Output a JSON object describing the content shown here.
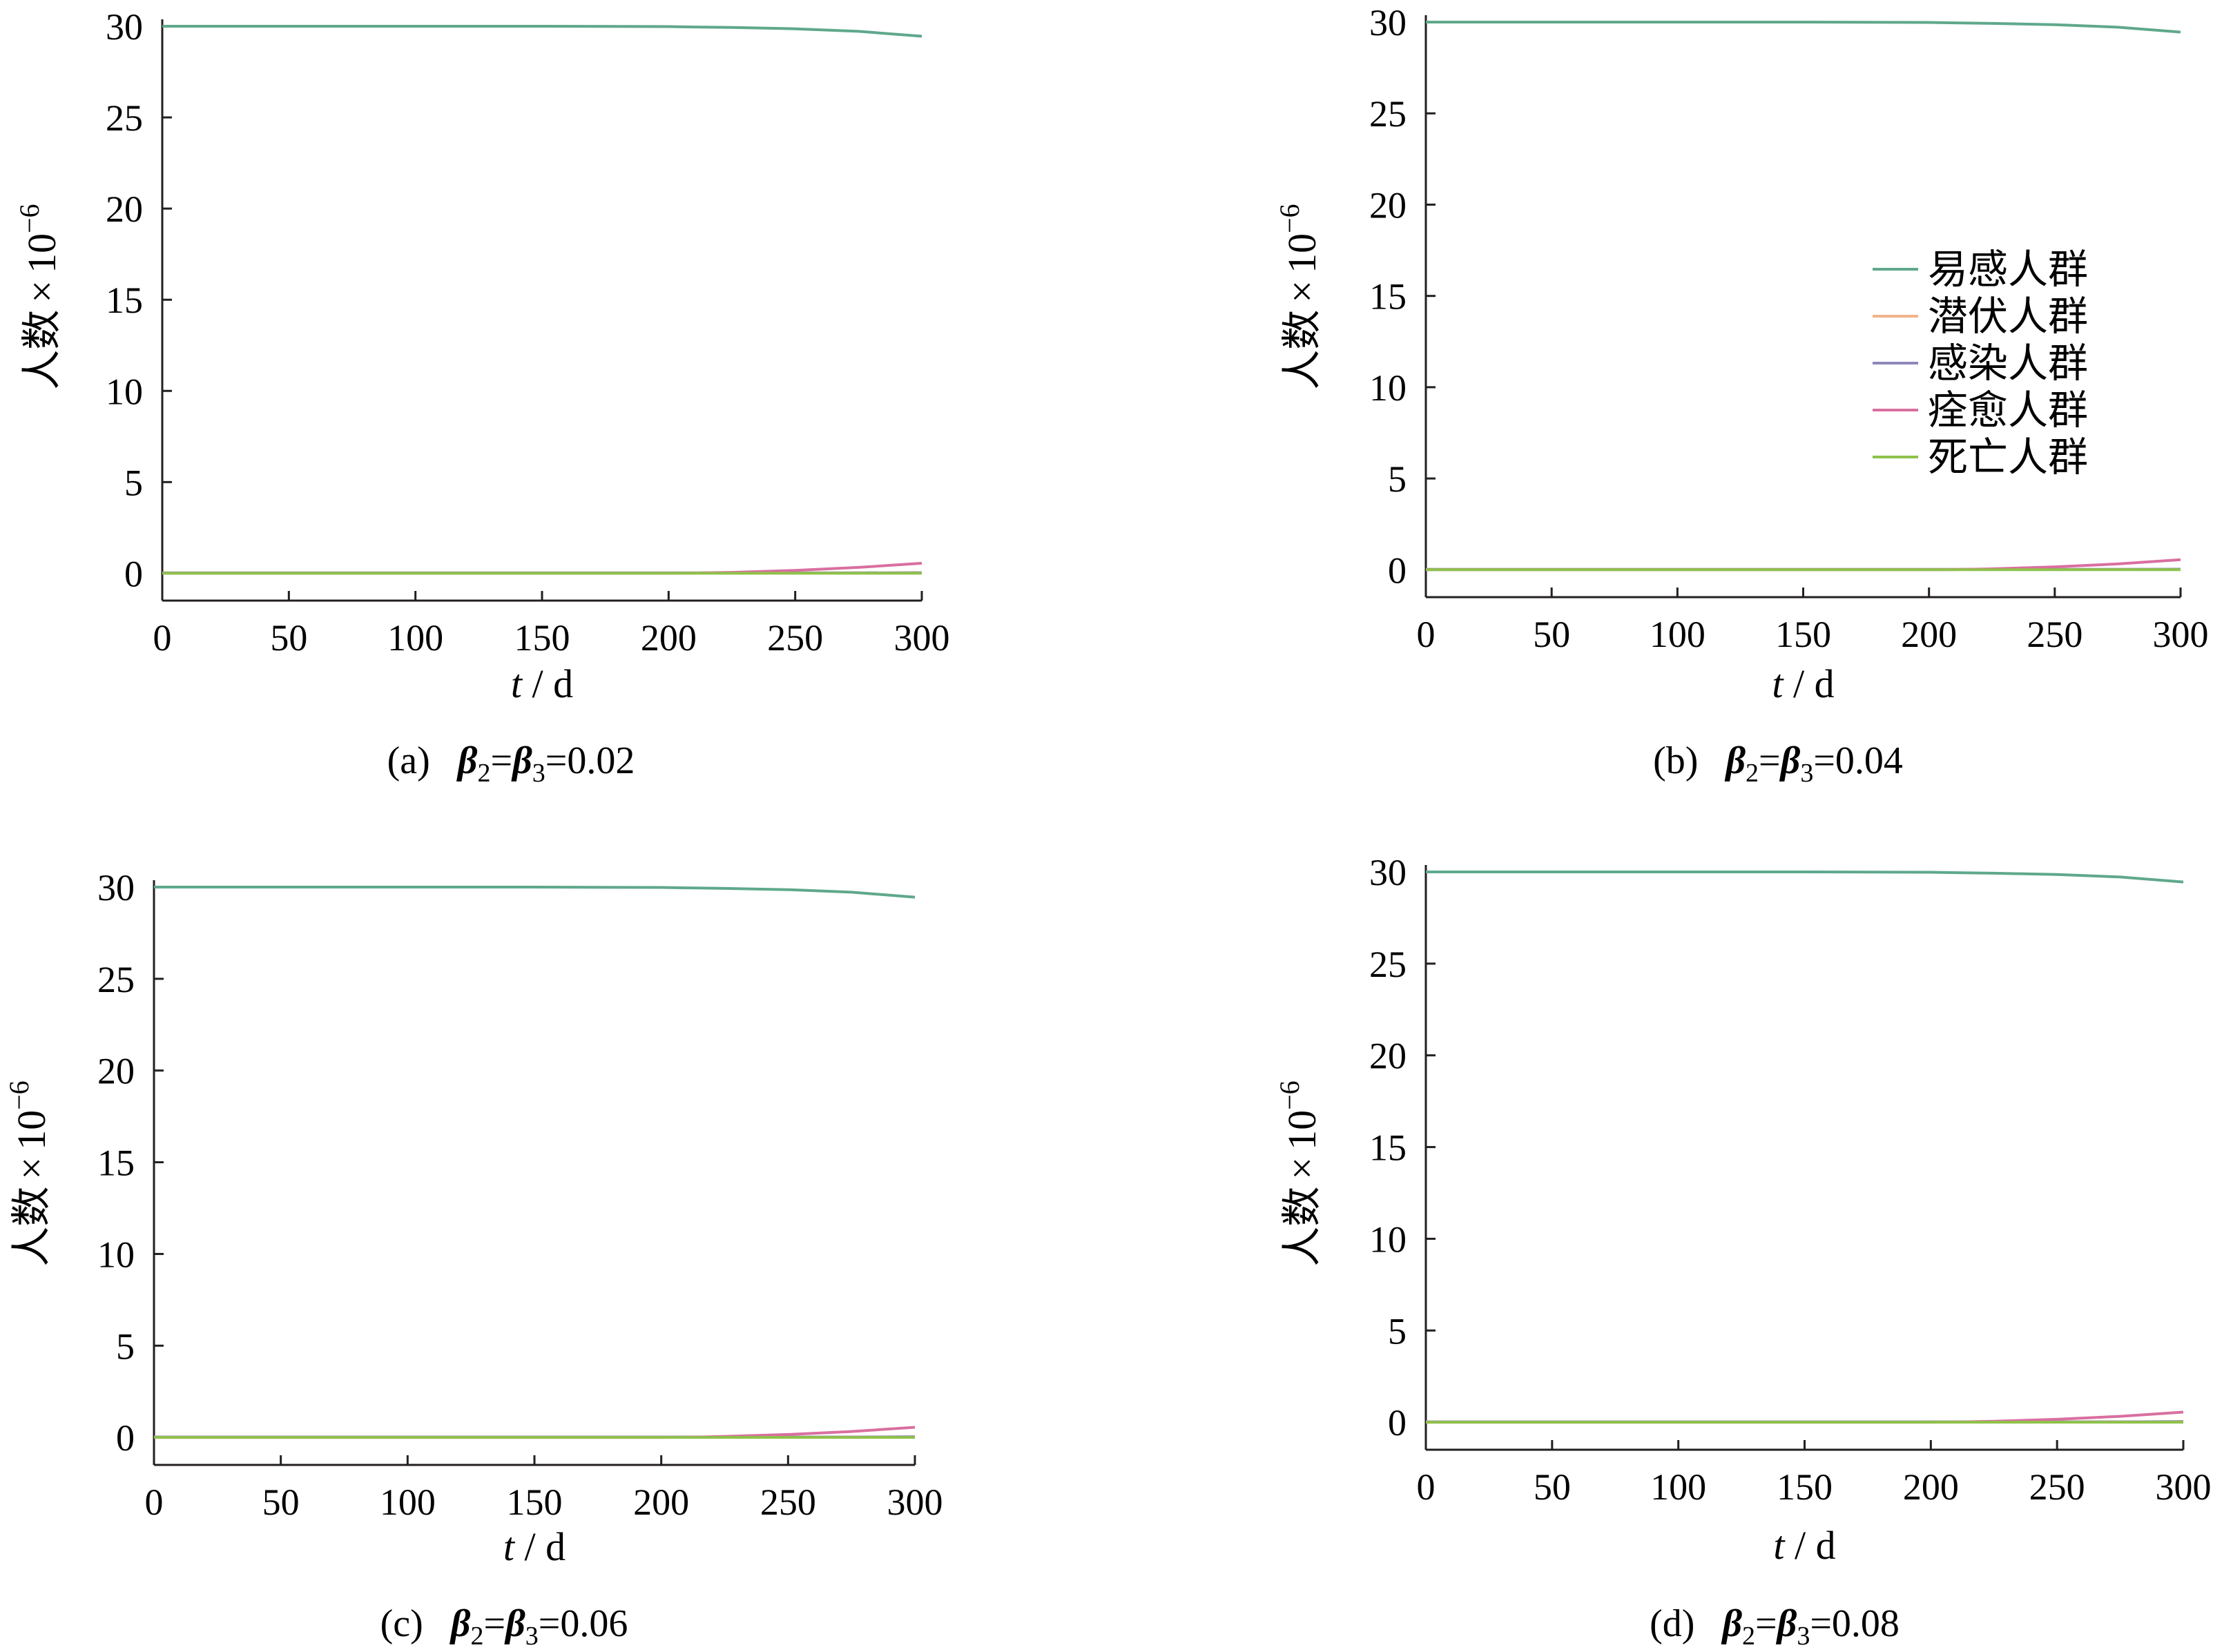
{
  "figure": {
    "panels": [
      {
        "caption": {
          "prefix": "(a)",
          "b2": "β",
          "b2sub": "2",
          "eq1": "=",
          "b3": "β",
          "b3sub": "3",
          "eq2": "=",
          "value": "0.02"
        }
      },
      {
        "caption": {
          "prefix": "(b)",
          "b2": "β",
          "b2sub": "2",
          "eq1": "=",
          "b3": "β",
          "b3sub": "3",
          "eq2": "=",
          "value": "0.04"
        }
      },
      {
        "caption": {
          "prefix": "(c)",
          "b2": "β",
          "b2sub": "2",
          "eq1": "=",
          "b3": "β",
          "b3sub": "3",
          "eq2": "=",
          "value": "0.06"
        }
      },
      {
        "caption": {
          "prefix": "(d)",
          "b2": "β",
          "b2sub": "2",
          "eq1": "=",
          "b3": "β",
          "b3sub": "3",
          "eq2": "=",
          "value": "0.08"
        }
      }
    ]
  },
  "chart_data": [
    {
      "type": "line",
      "xlabel": {
        "var": "t",
        "sep": " / ",
        "unit": "d"
      },
      "ylabel": {
        "text": "人数",
        "times": "×",
        "base": "10",
        "exp": "−6"
      },
      "xlim": [
        0,
        300
      ],
      "ylim": [
        -1.5,
        30
      ],
      "xticks": [
        0,
        50,
        100,
        150,
        200,
        250,
        300
      ],
      "yticks": [
        0,
        5,
        10,
        15,
        20,
        25,
        30
      ],
      "x": [
        0,
        50,
        100,
        150,
        200,
        210,
        225,
        250,
        275,
        300
      ],
      "series": [
        {
          "name": "易感人群",
          "color": "#5fa88c",
          "values": [
            30.0,
            30.0,
            30.0,
            30.0,
            29.98,
            29.96,
            29.93,
            29.86,
            29.72,
            29.45
          ]
        },
        {
          "name": "潜伏人群",
          "color": "#f0b38a",
          "values": [
            0.02,
            0.02,
            0.02,
            0.02,
            0.02,
            0.02,
            0.02,
            0.02,
            0.02,
            0.03
          ]
        },
        {
          "name": "感染人群",
          "color": "#8e88bb",
          "values": [
            0.02,
            0.02,
            0.02,
            0.02,
            0.02,
            0.02,
            0.02,
            0.02,
            0.02,
            0.03
          ]
        },
        {
          "name": "痊愈人群",
          "color": "#d96fa0",
          "values": [
            0.0,
            0.0,
            0.0,
            0.0,
            0.0,
            0.01,
            0.05,
            0.16,
            0.32,
            0.55
          ]
        },
        {
          "name": "死亡人群",
          "color": "#8fc24a",
          "values": [
            0.0,
            0.0,
            0.0,
            0.0,
            0.0,
            0.0,
            0.0,
            0.0,
            0.0,
            0.0
          ]
        }
      ]
    },
    {
      "type": "line",
      "xlabel": {
        "var": "t",
        "sep": " / ",
        "unit": "d"
      },
      "ylabel": {
        "text": "人数",
        "times": "×",
        "base": "10",
        "exp": "−6"
      },
      "xlim": [
        0,
        300
      ],
      "ylim": [
        -1.5,
        30
      ],
      "xticks": [
        0,
        50,
        100,
        150,
        200,
        250,
        300
      ],
      "yticks": [
        0,
        5,
        10,
        15,
        20,
        25,
        30
      ],
      "legend": "right",
      "x": [
        0,
        50,
        100,
        150,
        200,
        210,
        225,
        250,
        275,
        300
      ],
      "series": [
        {
          "name": "易感人群",
          "color": "#5fa88c",
          "values": [
            30.0,
            30.0,
            30.0,
            30.0,
            29.98,
            29.96,
            29.93,
            29.86,
            29.72,
            29.45
          ]
        },
        {
          "name": "潜伏人群",
          "color": "#f0b38a",
          "values": [
            0.02,
            0.02,
            0.02,
            0.02,
            0.02,
            0.02,
            0.02,
            0.02,
            0.02,
            0.03
          ]
        },
        {
          "name": "感染人群",
          "color": "#8e88bb",
          "values": [
            0.02,
            0.02,
            0.02,
            0.02,
            0.02,
            0.02,
            0.02,
            0.02,
            0.02,
            0.03
          ]
        },
        {
          "name": "痊愈人群",
          "color": "#d96fa0",
          "values": [
            0.0,
            0.0,
            0.0,
            0.0,
            0.0,
            0.01,
            0.05,
            0.16,
            0.32,
            0.55
          ]
        },
        {
          "name": "死亡人群",
          "color": "#8fc24a",
          "values": [
            0.0,
            0.0,
            0.0,
            0.0,
            0.0,
            0.0,
            0.0,
            0.0,
            0.0,
            0.0
          ]
        }
      ]
    },
    {
      "type": "line",
      "xlabel": {
        "var": "t",
        "sep": " / ",
        "unit": "d"
      },
      "ylabel": {
        "text": "人数",
        "times": "×",
        "base": "10",
        "exp": "−6"
      },
      "xlim": [
        0,
        300
      ],
      "ylim": [
        -1.5,
        30
      ],
      "xticks": [
        0,
        50,
        100,
        150,
        200,
        250,
        300
      ],
      "yticks": [
        0,
        5,
        10,
        15,
        20,
        25,
        30
      ],
      "x": [
        0,
        50,
        100,
        150,
        200,
        210,
        225,
        250,
        275,
        300
      ],
      "series": [
        {
          "name": "易感人群",
          "color": "#5fa88c",
          "values": [
            30.0,
            30.0,
            30.0,
            30.0,
            29.98,
            29.96,
            29.93,
            29.86,
            29.72,
            29.45
          ]
        },
        {
          "name": "潜伏人群",
          "color": "#f0b38a",
          "values": [
            0.02,
            0.02,
            0.02,
            0.02,
            0.02,
            0.02,
            0.02,
            0.02,
            0.02,
            0.03
          ]
        },
        {
          "name": "感染人群",
          "color": "#8e88bb",
          "values": [
            0.02,
            0.02,
            0.02,
            0.02,
            0.02,
            0.02,
            0.02,
            0.02,
            0.02,
            0.03
          ]
        },
        {
          "name": "痊愈人群",
          "color": "#d96fa0",
          "values": [
            0.0,
            0.0,
            0.0,
            0.0,
            0.0,
            0.01,
            0.05,
            0.16,
            0.32,
            0.55
          ]
        },
        {
          "name": "死亡人群",
          "color": "#8fc24a",
          "values": [
            0.0,
            0.0,
            0.0,
            0.0,
            0.0,
            0.0,
            0.0,
            0.0,
            0.0,
            0.0
          ]
        }
      ]
    },
    {
      "type": "line",
      "xlabel": {
        "var": "t",
        "sep": " / ",
        "unit": "d"
      },
      "ylabel": {
        "text": "人数",
        "times": "×",
        "base": "10",
        "exp": "−6"
      },
      "xlim": [
        0,
        300
      ],
      "ylim": [
        -1.5,
        30
      ],
      "xticks": [
        0,
        50,
        100,
        150,
        200,
        250,
        300
      ],
      "yticks": [
        0,
        5,
        10,
        15,
        20,
        25,
        30
      ],
      "x": [
        0,
        50,
        100,
        150,
        200,
        210,
        225,
        250,
        275,
        300
      ],
      "series": [
        {
          "name": "易感人群",
          "color": "#5fa88c",
          "values": [
            30.0,
            30.0,
            30.0,
            30.0,
            29.98,
            29.96,
            29.93,
            29.86,
            29.72,
            29.45
          ]
        },
        {
          "name": "潜伏人群",
          "color": "#f0b38a",
          "values": [
            0.02,
            0.02,
            0.02,
            0.02,
            0.02,
            0.02,
            0.02,
            0.02,
            0.02,
            0.03
          ]
        },
        {
          "name": "感染人群",
          "color": "#8e88bb",
          "values": [
            0.02,
            0.02,
            0.02,
            0.02,
            0.02,
            0.02,
            0.02,
            0.02,
            0.02,
            0.03
          ]
        },
        {
          "name": "痊愈人群",
          "color": "#d96fa0",
          "values": [
            0.0,
            0.0,
            0.0,
            0.0,
            0.0,
            0.01,
            0.05,
            0.16,
            0.32,
            0.55
          ]
        },
        {
          "name": "死亡人群",
          "color": "#8fc24a",
          "values": [
            0.0,
            0.0,
            0.0,
            0.0,
            0.0,
            0.0,
            0.0,
            0.0,
            0.0,
            0.0
          ]
        }
      ]
    }
  ]
}
